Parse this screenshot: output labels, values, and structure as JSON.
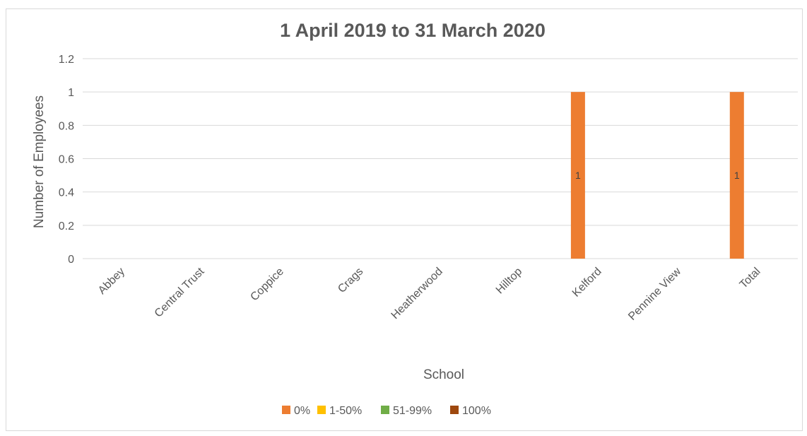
{
  "chart_data": {
    "type": "bar",
    "title": "1 April 2019 to 31 March 2020",
    "xlabel": "School",
    "ylabel": "Number of Employees",
    "categories": [
      "Abbey",
      "Central Trust",
      "Coppice",
      "Crags",
      "Heatherwood",
      "Hilltop",
      "Kelford",
      "Pennine View",
      "Total"
    ],
    "series": [
      {
        "name": "0%",
        "color": "#ED7D31",
        "values": [
          0,
          0,
          0,
          0,
          0,
          0,
          1,
          0,
          1
        ]
      },
      {
        "name": "1-50%",
        "color": "#FFC000",
        "values": [
          0,
          0,
          0,
          0,
          0,
          0,
          0,
          0,
          0
        ]
      },
      {
        "name": "51-99%",
        "color": "#70AD47",
        "values": [
          0,
          0,
          0,
          0,
          0,
          0,
          0,
          0,
          0
        ]
      },
      {
        "name": "100%",
        "color": "#9E480E",
        "values": [
          0,
          0,
          0,
          0,
          0,
          0,
          0,
          0,
          0
        ]
      }
    ],
    "data_labels": [
      {
        "category": "Kelford",
        "series": "0%",
        "text": "1"
      },
      {
        "category": "Total",
        "series": "0%",
        "text": "1"
      }
    ],
    "ylim": [
      0,
      1.2
    ],
    "yticks": [
      "0",
      "0.2",
      "0.4",
      "0.6",
      "0.8",
      "1",
      "1.2"
    ],
    "grid": true,
    "legend_position": "bottom"
  }
}
